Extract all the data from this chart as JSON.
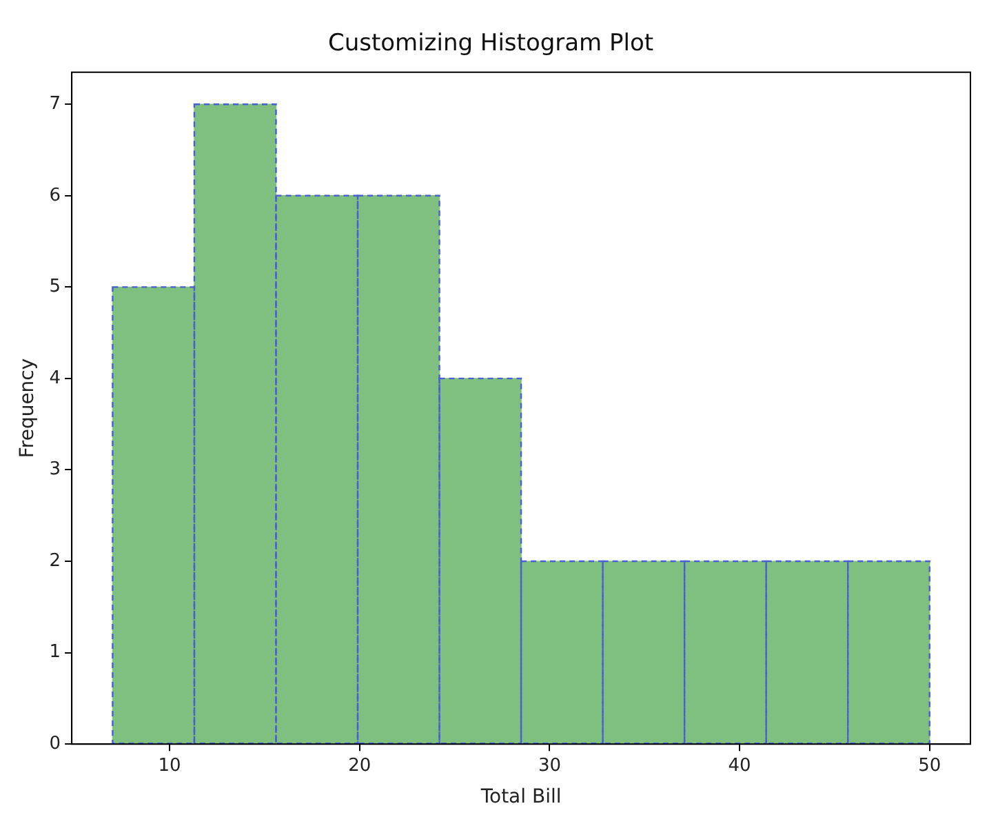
{
  "chart_data": {
    "type": "histogram",
    "title": "Customizing Histogram Plot",
    "xlabel": "Total Bill",
    "ylabel": "Frequency",
    "bins": [
      7,
      11.3,
      15.6,
      19.9,
      24.2,
      28.5,
      32.8,
      37.1,
      41.4,
      45.7,
      50
    ],
    "values": [
      5,
      7,
      6,
      6,
      4,
      2,
      2,
      2,
      2,
      2
    ],
    "color": "#7fbf7f",
    "line_style": "dashed",
    "xlim": [
      4.85,
      52.15
    ],
    "xticks": [
      10,
      20,
      30,
      40,
      50
    ],
    "ylim": [
      0,
      7.35
    ],
    "yticks": [
      0,
      1,
      2,
      3,
      4,
      5,
      6,
      7
    ],
    "grid": false,
    "legend": false
  }
}
